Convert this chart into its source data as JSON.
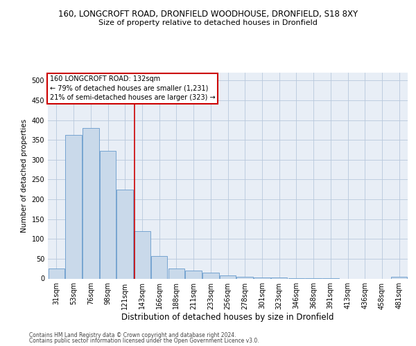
{
  "title1": "160, LONGCROFT ROAD, DRONFIELD WOODHOUSE, DRONFIELD, S18 8XY",
  "title2": "Size of property relative to detached houses in Dronfield",
  "xlabel": "Distribution of detached houses by size in Dronfield",
  "ylabel": "Number of detached properties",
  "footer1": "Contains HM Land Registry data © Crown copyright and database right 2024.",
  "footer2": "Contains public sector information licensed under the Open Government Licence v3.0.",
  "annotation_line1": "160 LONGCROFT ROAD: 132sqm",
  "annotation_line2": "← 79% of detached houses are smaller (1,231)",
  "annotation_line3": "21% of semi-detached houses are larger (323) →",
  "bar_color": "#c9d9ea",
  "bar_edge_color": "#6699cc",
  "vline_color": "#cc0000",
  "annotation_box_edge_color": "#cc0000",
  "background_color": "#ffffff",
  "plot_bg_color": "#e8eef6",
  "grid_color": "#b8c8dc",
  "categories": [
    "31sqm",
    "53sqm",
    "76sqm",
    "98sqm",
    "121sqm",
    "143sqm",
    "166sqm",
    "188sqm",
    "211sqm",
    "233sqm",
    "256sqm",
    "278sqm",
    "301sqm",
    "323sqm",
    "346sqm",
    "368sqm",
    "391sqm",
    "413sqm",
    "436sqm",
    "458sqm",
    "481sqm"
  ],
  "values": [
    25,
    362,
    380,
    322,
    225,
    120,
    57,
    25,
    20,
    15,
    7,
    5,
    3,
    2,
    1,
    1,
    1,
    0,
    0,
    0,
    4
  ],
  "vline_position": 4.55,
  "ylim": [
    0,
    520
  ],
  "yticks": [
    0,
    50,
    100,
    150,
    200,
    250,
    300,
    350,
    400,
    450,
    500
  ],
  "title1_fontsize": 8.5,
  "title2_fontsize": 8.0,
  "ylabel_fontsize": 7.5,
  "xlabel_fontsize": 8.5,
  "tick_fontsize": 7.0,
  "footer_fontsize": 5.5,
  "ann_fontsize": 7.0
}
